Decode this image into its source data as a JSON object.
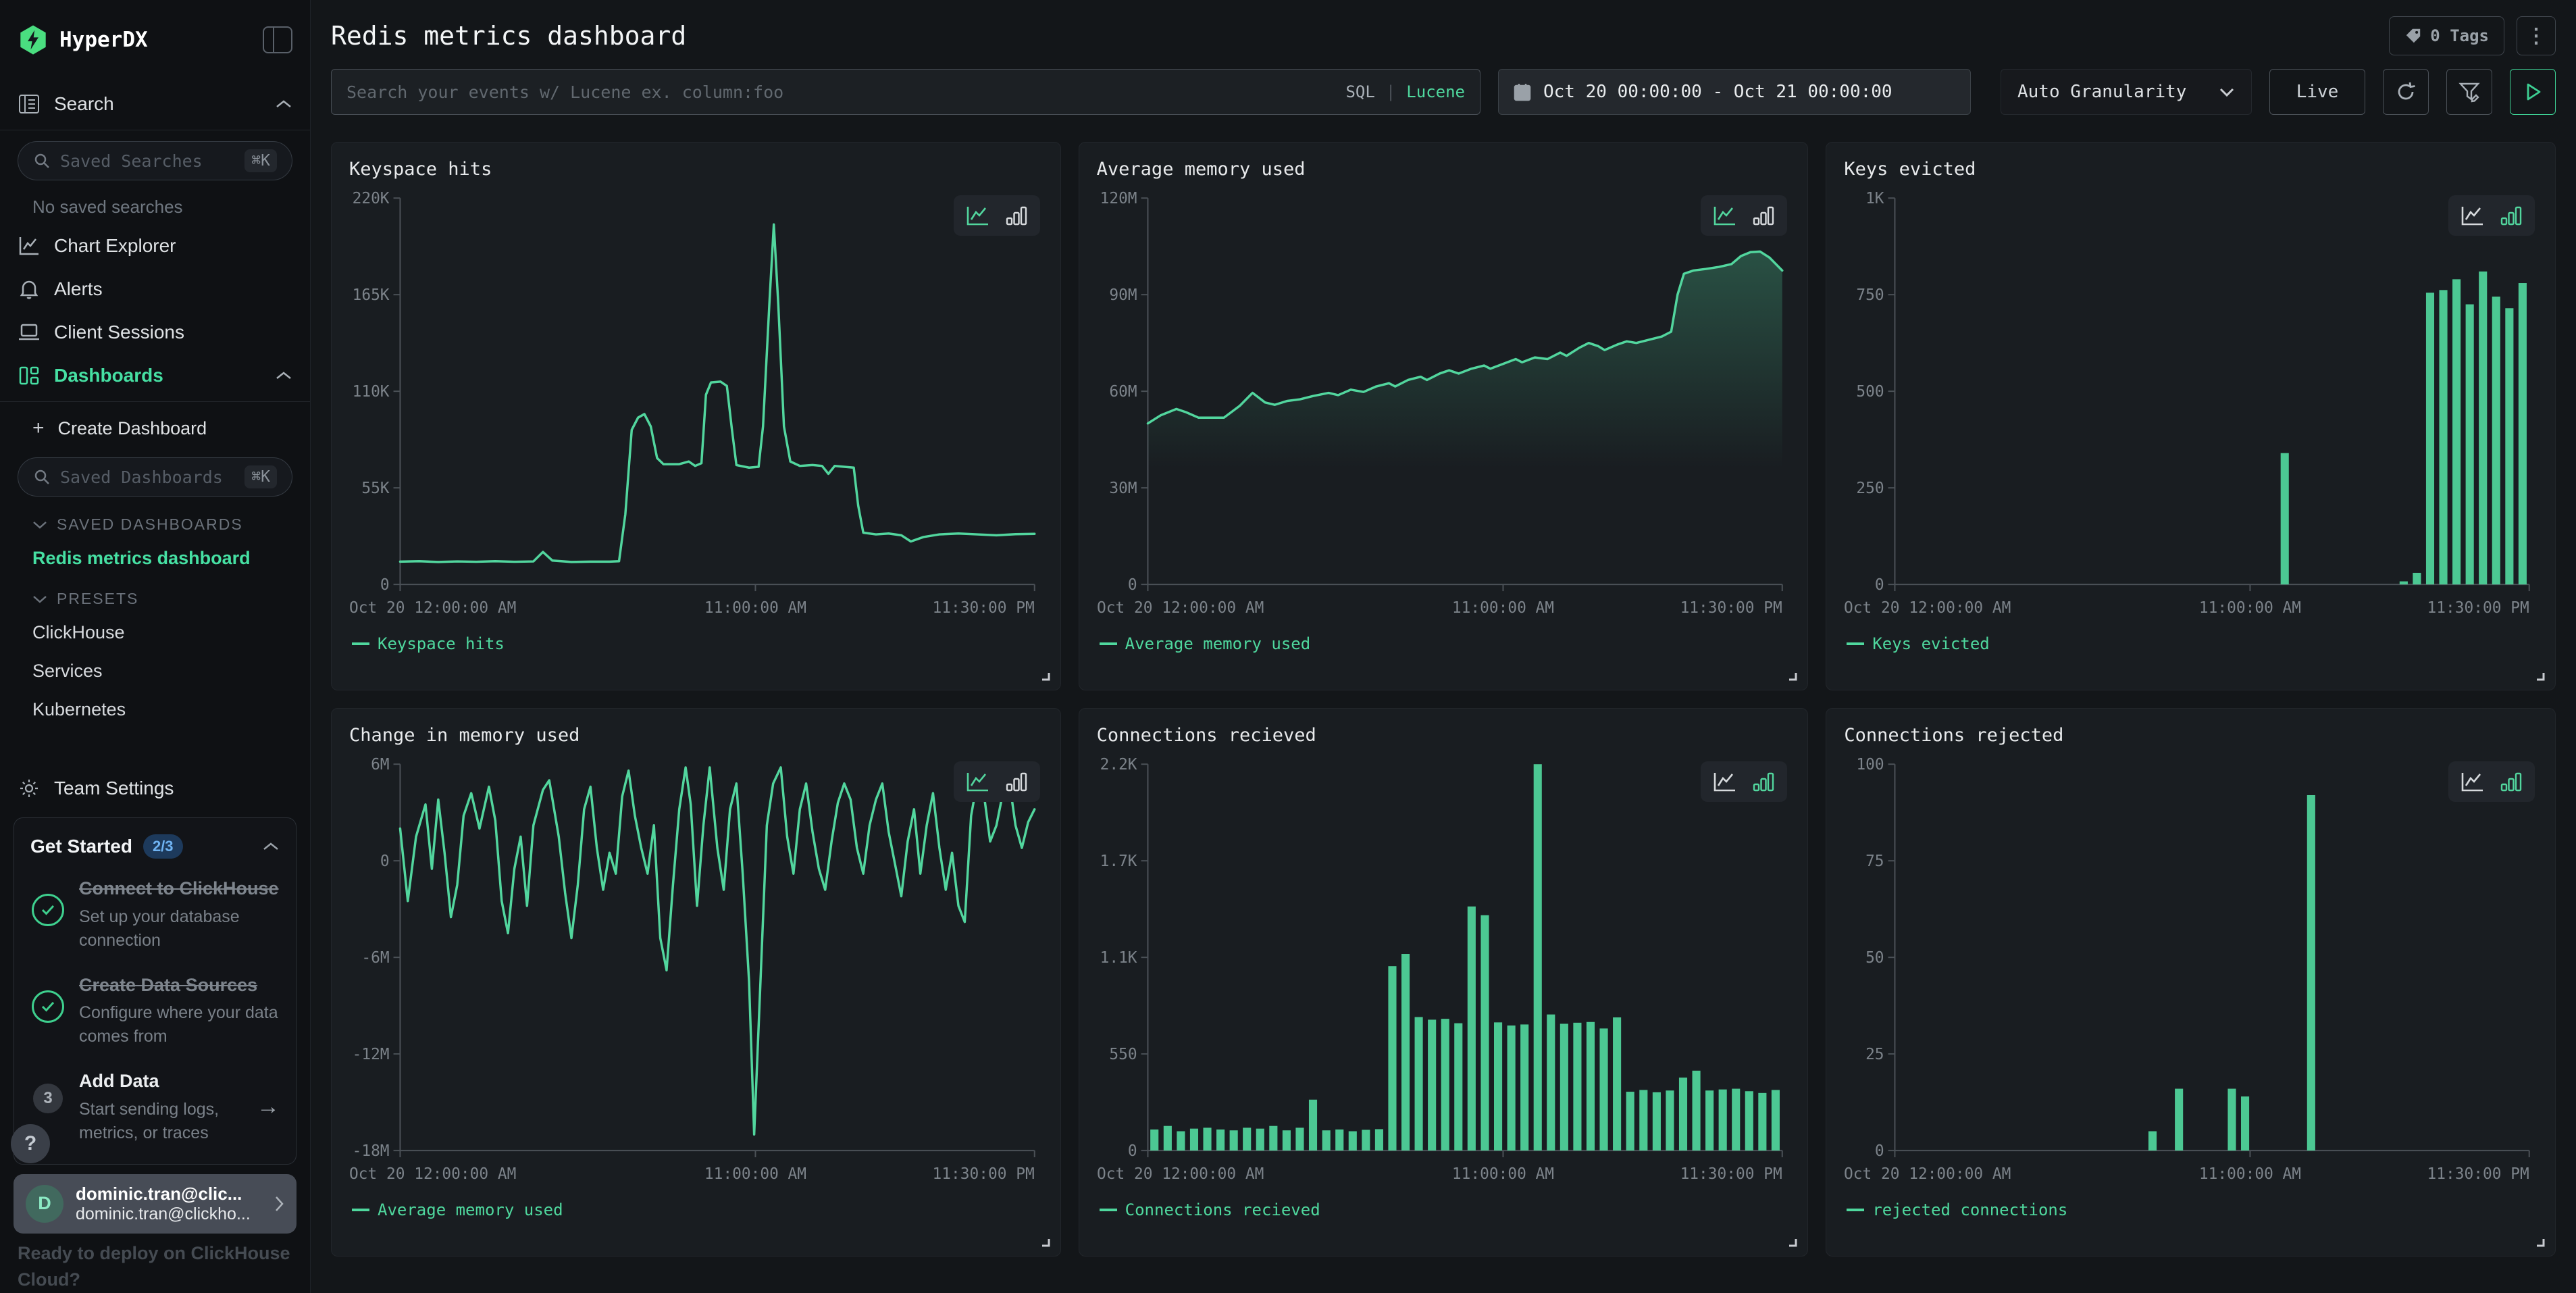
{
  "accent": {
    "green": "#46e0a3",
    "line_green": "#52d69e",
    "bar_green": "#4cc893",
    "badge_blue_bg": "#1d3a5c",
    "badge_blue_text": "#6fb3f2"
  },
  "sidebar": {
    "brand": "HyperDX",
    "search_nav": "Search",
    "saved_searches_placeholder": "Saved Searches",
    "shortcut": "⌘K",
    "no_saved_searches": "No saved searches",
    "chart_explorer": "Chart Explorer",
    "alerts": "Alerts",
    "client_sessions": "Client Sessions",
    "dashboards": "Dashboards",
    "create_plus": "+",
    "create_dashboard": "Create Dashboard",
    "saved_dashboards_placeholder": "Saved Dashboards",
    "saved_dashboards_header": "SAVED DASHBOARDS",
    "active_dashboard": "Redis metrics dashboard",
    "presets_header": "PRESETS",
    "presets": [
      "ClickHouse",
      "Services",
      "Kubernetes"
    ],
    "team_settings": "Team Settings",
    "get_started": {
      "title": "Get Started",
      "badge": "2/3",
      "steps": [
        {
          "title": "Connect to ClickHouse",
          "desc": "Set up your database connection",
          "done": true
        },
        {
          "title": "Create Data Sources",
          "desc": "Configure where your data comes from",
          "done": true
        },
        {
          "title": "Add Data",
          "desc": "Start sending logs, metrics, or traces",
          "done": false,
          "number": "3",
          "arrow": "→"
        }
      ]
    },
    "help": "?",
    "user": {
      "initial": "D",
      "name": "dominic.tran@clic...",
      "email": "dominic.tran@clickho..."
    },
    "promo": "Ready to deploy on ClickHouse Cloud?"
  },
  "header": {
    "title": "Redis metrics dashboard",
    "tags": "0 Tags",
    "menu": "⋮"
  },
  "toolbar": {
    "search_placeholder": "Search your events w/ Lucene ex. column:foo",
    "sql": "SQL",
    "divider": "|",
    "lucene": "Lucene",
    "date_range": "Oct 20 00:00:00 - Oct 21 00:00:00",
    "granularity": "Auto Granularity",
    "live": "Live"
  },
  "chart_data": [
    {
      "type": "line",
      "title": "Keyspace hits",
      "legend": "Keyspace hits",
      "y_ticks": [
        "220K",
        "165K",
        "110K",
        "55K",
        "0"
      ],
      "y_min": 0,
      "y_max": 220,
      "x_ticks": [
        "Oct 20 12:00:00 AM",
        "11:00:00 AM",
        "11:30:00 PM"
      ],
      "points": [
        [
          0,
          13
        ],
        [
          0.03,
          13.2
        ],
        [
          0.06,
          12.8
        ],
        [
          0.09,
          13.1
        ],
        [
          0.12,
          12.9
        ],
        [
          0.15,
          13.2
        ],
        [
          0.18,
          12.9
        ],
        [
          0.21,
          13.1
        ],
        [
          0.225,
          18.5
        ],
        [
          0.24,
          13.6
        ],
        [
          0.27,
          12.8
        ],
        [
          0.3,
          13
        ],
        [
          0.33,
          13
        ],
        [
          0.345,
          13.2
        ],
        [
          0.355,
          40
        ],
        [
          0.365,
          88
        ],
        [
          0.375,
          95
        ],
        [
          0.385,
          97
        ],
        [
          0.395,
          90
        ],
        [
          0.405,
          72
        ],
        [
          0.415,
          68.5
        ],
        [
          0.44,
          68.5
        ],
        [
          0.455,
          70
        ],
        [
          0.465,
          67.5
        ],
        [
          0.475,
          69
        ],
        [
          0.482,
          108
        ],
        [
          0.49,
          115
        ],
        [
          0.505,
          115.5
        ],
        [
          0.515,
          113
        ],
        [
          0.523,
          88
        ],
        [
          0.53,
          68
        ],
        [
          0.55,
          66.5
        ],
        [
          0.565,
          67
        ],
        [
          0.572,
          90
        ],
        [
          0.582,
          160
        ],
        [
          0.589,
          205
        ],
        [
          0.596,
          160
        ],
        [
          0.605,
          90
        ],
        [
          0.615,
          70
        ],
        [
          0.63,
          67.5
        ],
        [
          0.65,
          68
        ],
        [
          0.665,
          67.5
        ],
        [
          0.675,
          63
        ],
        [
          0.685,
          67.5
        ],
        [
          0.7,
          67
        ],
        [
          0.715,
          66.5
        ],
        [
          0.722,
          45
        ],
        [
          0.73,
          29.5
        ],
        [
          0.75,
          28.5
        ],
        [
          0.77,
          29
        ],
        [
          0.79,
          28
        ],
        [
          0.805,
          24.5
        ],
        [
          0.825,
          27
        ],
        [
          0.85,
          28.5
        ],
        [
          0.88,
          29
        ],
        [
          0.91,
          28.5
        ],
        [
          0.94,
          28
        ],
        [
          0.97,
          28.6
        ],
        [
          1,
          28.8
        ]
      ]
    },
    {
      "type": "line",
      "fill": true,
      "title": "Average memory used",
      "legend": "Average memory used",
      "y_ticks": [
        "120M",
        "90M",
        "60M",
        "30M",
        "0"
      ],
      "y_min": 0,
      "y_max": 120,
      "x_ticks": [
        "Oct 20 12:00:00 AM",
        "11:00:00 AM",
        "11:30:00 PM"
      ],
      "points": [
        [
          0,
          50
        ],
        [
          0.02,
          52.5
        ],
        [
          0.045,
          54.5
        ],
        [
          0.06,
          53.5
        ],
        [
          0.08,
          51.8
        ],
        [
          0.1,
          51.8
        ],
        [
          0.12,
          51.8
        ],
        [
          0.145,
          55.5
        ],
        [
          0.165,
          59.5
        ],
        [
          0.185,
          56.5
        ],
        [
          0.2,
          55.8
        ],
        [
          0.22,
          57
        ],
        [
          0.24,
          57.5
        ],
        [
          0.26,
          58.5
        ],
        [
          0.285,
          59.5
        ],
        [
          0.3,
          58.8
        ],
        [
          0.32,
          60.5
        ],
        [
          0.34,
          59.8
        ],
        [
          0.36,
          61.5
        ],
        [
          0.38,
          62.5
        ],
        [
          0.39,
          61.5
        ],
        [
          0.41,
          63.5
        ],
        [
          0.43,
          64.5
        ],
        [
          0.44,
          63.5
        ],
        [
          0.46,
          65.5
        ],
        [
          0.475,
          66.5
        ],
        [
          0.49,
          65.5
        ],
        [
          0.51,
          67
        ],
        [
          0.53,
          68
        ],
        [
          0.54,
          67
        ],
        [
          0.56,
          68.5
        ],
        [
          0.58,
          70
        ],
        [
          0.59,
          69
        ],
        [
          0.61,
          70.5
        ],
        [
          0.63,
          70
        ],
        [
          0.65,
          72
        ],
        [
          0.66,
          71
        ],
        [
          0.68,
          73.5
        ],
        [
          0.695,
          75
        ],
        [
          0.71,
          74
        ],
        [
          0.72,
          72.8
        ],
        [
          0.74,
          74.5
        ],
        [
          0.755,
          75.5
        ],
        [
          0.77,
          75
        ],
        [
          0.79,
          76
        ],
        [
          0.81,
          77
        ],
        [
          0.825,
          78.5
        ],
        [
          0.835,
          90
        ],
        [
          0.845,
          96.5
        ],
        [
          0.86,
          97.5
        ],
        [
          0.88,
          98
        ],
        [
          0.9,
          98.6
        ],
        [
          0.92,
          99.5
        ],
        [
          0.935,
          102
        ],
        [
          0.95,
          103.2
        ],
        [
          0.965,
          103.4
        ],
        [
          0.98,
          101.5
        ],
        [
          1,
          97.5
        ]
      ]
    },
    {
      "type": "bar",
      "title": "Keys evicted",
      "legend": "Keys evicted",
      "y_ticks": [
        "1K",
        "750",
        "500",
        "250",
        "0"
      ],
      "y_min": 0,
      "y_max": 1000,
      "x_ticks": [
        "Oct 20 12:00:00 AM",
        "11:00:00 AM",
        "11:30:00 PM"
      ],
      "values": [
        0,
        0,
        0,
        0,
        0,
        0,
        0,
        0,
        0,
        0,
        0,
        0,
        0,
        0,
        0,
        0,
        0,
        0,
        0,
        0,
        0,
        0,
        0,
        0,
        0,
        0,
        0,
        0,
        0,
        340,
        0,
        0,
        0,
        0,
        0,
        0,
        0,
        0,
        8,
        30,
        755,
        762,
        790,
        725,
        810,
        745,
        715,
        780
      ]
    },
    {
      "type": "line",
      "title": "Change in memory used",
      "legend": "Average memory used",
      "y_ticks": [
        "6M",
        "0",
        "-6M",
        "-12M",
        "-18M"
      ],
      "y_min": -18,
      "y_max": 6,
      "x_ticks": [
        "Oct 20 12:00:00 AM",
        "11:00:00 AM",
        "11:30:00 PM"
      ],
      "points": [
        [
          0,
          2
        ],
        [
          0.012,
          -2.5
        ],
        [
          0.025,
          1.5
        ],
        [
          0.04,
          3.5
        ],
        [
          0.05,
          -0.5
        ],
        [
          0.06,
          3.8
        ],
        [
          0.07,
          0.5
        ],
        [
          0.08,
          -3.5
        ],
        [
          0.09,
          -1.5
        ],
        [
          0.1,
          2.8
        ],
        [
          0.112,
          4.2
        ],
        [
          0.125,
          2
        ],
        [
          0.14,
          4.6
        ],
        [
          0.15,
          2.5
        ],
        [
          0.16,
          -2.5
        ],
        [
          0.17,
          -4.5
        ],
        [
          0.18,
          -0.5
        ],
        [
          0.19,
          1.5
        ],
        [
          0.2,
          -2.8
        ],
        [
          0.21,
          2.2
        ],
        [
          0.225,
          4.4
        ],
        [
          0.235,
          5
        ],
        [
          0.25,
          1.5
        ],
        [
          0.26,
          -2
        ],
        [
          0.27,
          -4.8
        ],
        [
          0.28,
          -1.5
        ],
        [
          0.29,
          3.2
        ],
        [
          0.3,
          4.6
        ],
        [
          0.31,
          0.8
        ],
        [
          0.32,
          -1.8
        ],
        [
          0.33,
          0.5
        ],
        [
          0.34,
          -0.8
        ],
        [
          0.35,
          4
        ],
        [
          0.36,
          5.6
        ],
        [
          0.37,
          2.8
        ],
        [
          0.38,
          0.8
        ],
        [
          0.39,
          -0.8
        ],
        [
          0.4,
          2.2
        ],
        [
          0.41,
          -4.8
        ],
        [
          0.42,
          -6.8
        ],
        [
          0.43,
          -1.5
        ],
        [
          0.44,
          3.2
        ],
        [
          0.45,
          5.8
        ],
        [
          0.458,
          3.5
        ],
        [
          0.468,
          -2.8
        ],
        [
          0.478,
          2.2
        ],
        [
          0.488,
          5.8
        ],
        [
          0.5,
          0.8
        ],
        [
          0.51,
          -1.8
        ],
        [
          0.52,
          3.2
        ],
        [
          0.53,
          4.8
        ],
        [
          0.54,
          -0.8
        ],
        [
          0.55,
          -7.5
        ],
        [
          0.558,
          -17
        ],
        [
          0.568,
          -7.5
        ],
        [
          0.578,
          2.2
        ],
        [
          0.588,
          4.8
        ],
        [
          0.6,
          5.8
        ],
        [
          0.61,
          1.5
        ],
        [
          0.62,
          -0.8
        ],
        [
          0.63,
          3.2
        ],
        [
          0.64,
          4.8
        ],
        [
          0.65,
          1.8
        ],
        [
          0.66,
          -0.5
        ],
        [
          0.67,
          -1.8
        ],
        [
          0.68,
          1.2
        ],
        [
          0.69,
          3.6
        ],
        [
          0.7,
          4.8
        ],
        [
          0.71,
          3.8
        ],
        [
          0.72,
          0.8
        ],
        [
          0.73,
          -0.8
        ],
        [
          0.74,
          2.2
        ],
        [
          0.75,
          3.8
        ],
        [
          0.76,
          4.8
        ],
        [
          0.77,
          1.8
        ],
        [
          0.78,
          -0.2
        ],
        [
          0.79,
          -2.2
        ],
        [
          0.8,
          1.2
        ],
        [
          0.81,
          3.2
        ],
        [
          0.82,
          -0.8
        ],
        [
          0.83,
          2.2
        ],
        [
          0.84,
          4.2
        ],
        [
          0.85,
          0.8
        ],
        [
          0.86,
          -1.8
        ],
        [
          0.87,
          0.5
        ],
        [
          0.88,
          -2.8
        ],
        [
          0.89,
          -3.8
        ],
        [
          0.9,
          2.8
        ],
        [
          0.91,
          5
        ],
        [
          0.92,
          4.2
        ],
        [
          0.93,
          1.2
        ],
        [
          0.94,
          2.2
        ],
        [
          0.95,
          4.2
        ],
        [
          0.96,
          5
        ],
        [
          0.97,
          2.2
        ],
        [
          0.98,
          0.8
        ],
        [
          0.99,
          2.4
        ],
        [
          1,
          3.2
        ]
      ]
    },
    {
      "type": "bar",
      "title": "Connections recieved",
      "legend": "Connections recieved",
      "y_ticks": [
        "2.2K",
        "1.7K",
        "1.1K",
        "550",
        "0"
      ],
      "y_min": 0,
      "y_max": 2200,
      "x_ticks": [
        "Oct 20 12:00:00 AM",
        "11:00:00 AM",
        "11:30:00 PM"
      ],
      "values": [
        120,
        140,
        110,
        125,
        130,
        120,
        115,
        130,
        125,
        140,
        115,
        130,
        290,
        115,
        120,
        110,
        118,
        122,
        1050,
        1120,
        760,
        745,
        750,
        725,
        1390,
        1340,
        730,
        712,
        718,
        2200,
        775,
        722,
        728,
        732,
        695,
        758,
        335,
        345,
        332,
        342,
        415,
        455,
        342,
        348,
        352,
        338,
        328,
        345
      ]
    },
    {
      "type": "bar",
      "title": "Connections rejected",
      "legend": "rejected connections",
      "y_ticks": [
        "100",
        "75",
        "50",
        "25",
        "0"
      ],
      "y_min": 0,
      "y_max": 100,
      "x_ticks": [
        "Oct 20 12:00:00 AM",
        "11:00:00 AM",
        "11:30:00 PM"
      ],
      "values": [
        0,
        0,
        0,
        0,
        0,
        0,
        0,
        0,
        0,
        0,
        0,
        0,
        0,
        0,
        0,
        0,
        0,
        0,
        0,
        5,
        0,
        16,
        0,
        0,
        0,
        16,
        14,
        0,
        0,
        0,
        0,
        92,
        0,
        0,
        0,
        0,
        0,
        0,
        0,
        0,
        0,
        0,
        0,
        0,
        0,
        0,
        0,
        0
      ]
    }
  ]
}
